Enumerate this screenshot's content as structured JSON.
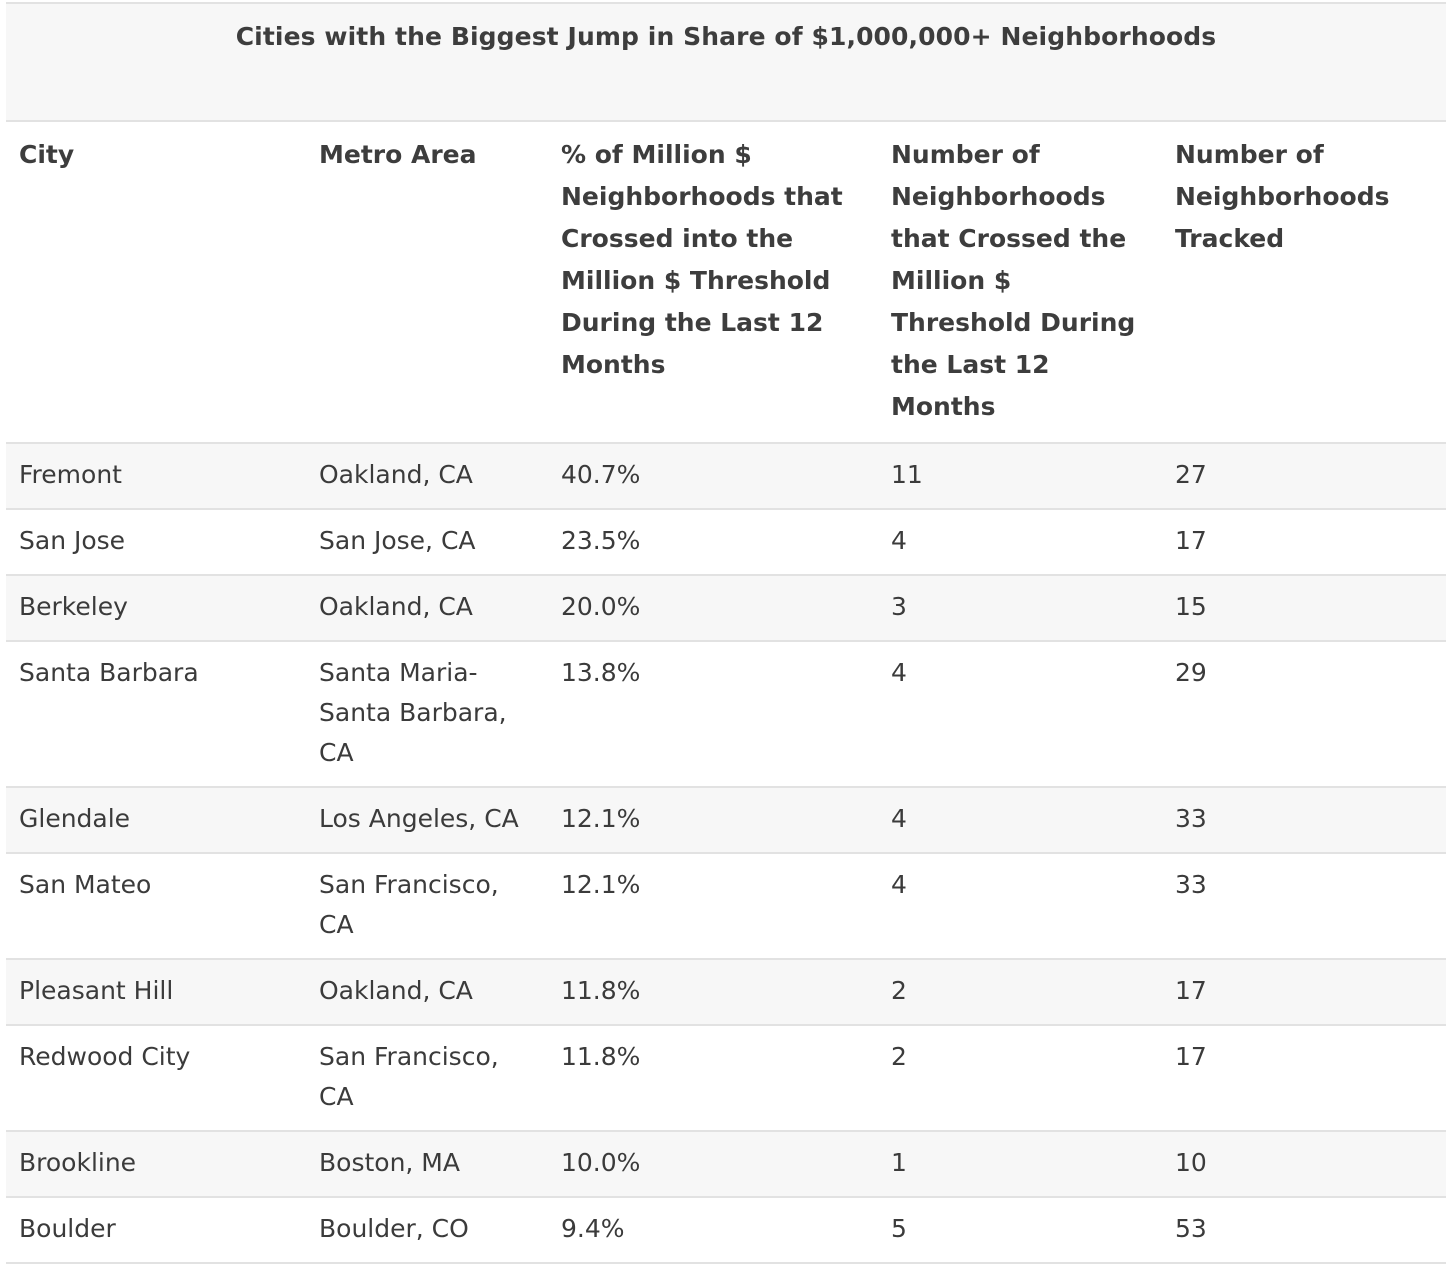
{
  "table": {
    "title": "Cities with the Biggest Jump in Share of $1,000,000+ Neighborhoods",
    "columns": [
      "City",
      "Metro Area",
      "% of Million $ Neighborhoods that Crossed into the Million $ Threshold During the Last 12 Months",
      "Number of Neighborhoods that Crossed the Million $ Threshold During the Last 12 Months",
      "Number of Neighborhoods Tracked"
    ],
    "rows": [
      [
        "Fremont",
        "Oakland, CA",
        "40.7%",
        "11",
        "27"
      ],
      [
        "San Jose",
        "San Jose, CA",
        "23.5%",
        "4",
        "17"
      ],
      [
        "Berkeley",
        "Oakland, CA",
        "20.0%",
        "3",
        "15"
      ],
      [
        "Santa Barbara",
        "Santa Maria-Santa Barbara, CA",
        "13.8%",
        "4",
        "29"
      ],
      [
        "Glendale",
        "Los Angeles, CA",
        "12.1%",
        "4",
        "33"
      ],
      [
        "San Mateo",
        "San Francisco, CA",
        "12.1%",
        "4",
        "33"
      ],
      [
        "Pleasant Hill",
        "Oakland, CA",
        "11.8%",
        "2",
        "17"
      ],
      [
        "Redwood City",
        "San Francisco, CA",
        "11.8%",
        "2",
        "17"
      ],
      [
        "Brookline",
        "Boston, MA",
        "10.0%",
        "1",
        "10"
      ],
      [
        "Boulder",
        "Boulder, CO",
        "9.4%",
        "5",
        "53"
      ]
    ]
  }
}
